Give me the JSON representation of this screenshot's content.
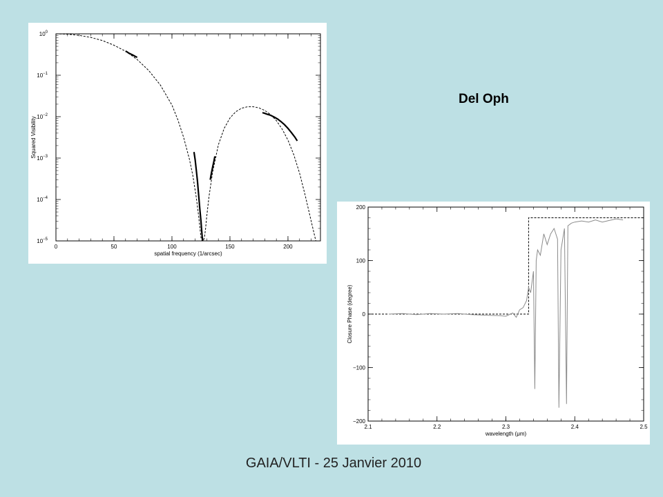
{
  "slide": {
    "title": "Del Oph",
    "footer": "GAIA/VLTI - 25 Janvier 2010"
  },
  "colors": {
    "background": "#bde0e4",
    "panel": "#ffffff",
    "data_line": "#000000",
    "model_line": "#000000",
    "data_gray": "#8a8a8a"
  },
  "chart_data": [
    {
      "type": "line",
      "xlabel": "spatial frequency (1/arcsec)",
      "ylabel": "Squared Visibility",
      "xlim": [
        0,
        228
      ],
      "ylim": [
        1e-05,
        1
      ],
      "yscale": "log",
      "xticks": [
        0,
        50,
        100,
        150,
        200
      ],
      "yticks": [
        {
          "value": 1,
          "mantissa": "10",
          "exp": "0"
        },
        {
          "value": 0.1,
          "mantissa": "10",
          "exp": "−1"
        },
        {
          "value": 0.01,
          "mantissa": "10",
          "exp": "−2"
        },
        {
          "value": 0.001,
          "mantissa": "10",
          "exp": "−3"
        },
        {
          "value": 0.0001,
          "mantissa": "10",
          "exp": "−4"
        },
        {
          "value": 1e-05,
          "mantissa": "10",
          "exp": "−5"
        }
      ],
      "grid": false,
      "series": [
        {
          "style": "dashed",
          "x": [
            0,
            10,
            20,
            30,
            40,
            50,
            60,
            70,
            80,
            90,
            100,
            105,
            110,
            115,
            118,
            121,
            123,
            125,
            126,
            127,
            128,
            129,
            130,
            132,
            135,
            140,
            145,
            150,
            155,
            160,
            165,
            170,
            175,
            180,
            185,
            190,
            195,
            200,
            205,
            210,
            215,
            220,
            224,
            226
          ],
          "y": [
            1.0,
            0.98,
            0.92,
            0.82,
            0.69,
            0.53,
            0.38,
            0.24,
            0.13,
            0.058,
            0.019,
            0.0085,
            0.0032,
            0.00095,
            0.00038,
            0.00011,
            4e-05,
            1.2e-05,
            1e-05,
            1e-05,
            1.2e-05,
            2e-05,
            4e-05,
            0.00012,
            0.00045,
            0.0021,
            0.0052,
            0.0093,
            0.0132,
            0.016,
            0.0173,
            0.0174,
            0.0163,
            0.0141,
            0.0112,
            0.008,
            0.005,
            0.0027,
            0.0012,
            0.00043,
            0.00012,
            3e-05,
            1e-05,
            3e-06
          ]
        },
        {
          "style": "solid",
          "x": [
            60,
            61,
            62,
            63,
            64,
            65,
            66,
            67,
            68,
            69,
            70
          ],
          "y": [
            0.38,
            0.37,
            0.355,
            0.34,
            0.33,
            0.32,
            0.31,
            0.3,
            0.29,
            0.28,
            0.27
          ]
        },
        {
          "style": "solid",
          "x": [
            119,
            120,
            121,
            122,
            123,
            124,
            125,
            125.5,
            126,
            126.5
          ],
          "y": [
            0.0014,
            0.0009,
            0.0005,
            0.00028,
            0.00013,
            6e-05,
            3e-05,
            2e-05,
            1.3e-05,
            1e-05
          ]
        },
        {
          "style": "solid",
          "x": [
            133,
            134,
            135,
            136,
            137
          ],
          "y": [
            0.0003,
            0.00043,
            0.0006,
            0.0008,
            0.0011
          ]
        },
        {
          "style": "solid",
          "x": [
            178,
            180,
            182,
            185,
            188,
            191,
            194,
            197,
            200,
            203,
            206,
            208
          ],
          "y": [
            0.0125,
            0.012,
            0.0115,
            0.0108,
            0.0098,
            0.0088,
            0.0076,
            0.0064,
            0.0052,
            0.0041,
            0.0032,
            0.0026
          ]
        }
      ]
    },
    {
      "type": "line",
      "xlabel": "wavelength (μm)",
      "ylabel": "Closure Phase (degree)",
      "xlim": [
        2.1,
        2.5
      ],
      "ylim": [
        -200,
        200
      ],
      "xticks": [
        2.1,
        2.2,
        2.3,
        2.4,
        2.5
      ],
      "xtick_labels": [
        "2.1",
        "2.2",
        "2.3",
        "2.4",
        "2.5"
      ],
      "yticks": [
        200,
        100,
        0,
        -100,
        -200
      ],
      "ytick_labels": [
        "200",
        "100",
        "0",
        "−100",
        "−200"
      ],
      "grid": false,
      "series": [
        {
          "style": "dashed",
          "x": [
            2.1,
            2.333,
            2.333,
            2.5
          ],
          "y": [
            0,
            0,
            180,
            180
          ]
        },
        {
          "style": "solid",
          "x": [
            2.13,
            2.15,
            2.17,
            2.19,
            2.21,
            2.23,
            2.25,
            2.27,
            2.29,
            2.3,
            2.31,
            2.315,
            2.32,
            2.325,
            2.33,
            2.333,
            2.336,
            2.34,
            2.342,
            2.344,
            2.346,
            2.35,
            2.355,
            2.36,
            2.365,
            2.37,
            2.375,
            2.377,
            2.38,
            2.385,
            2.388,
            2.39,
            2.395,
            2.4,
            2.41,
            2.42,
            2.43,
            2.44,
            2.45,
            2.46,
            2.47
          ],
          "y": [
            0,
            1,
            -1,
            1,
            0,
            1,
            -1,
            -2,
            -3,
            -4,
            2,
            -6,
            8,
            12,
            25,
            50,
            40,
            80,
            -140,
            100,
            120,
            110,
            150,
            130,
            150,
            160,
            140,
            -175,
            120,
            160,
            -168,
            165,
            170,
            172,
            174,
            172,
            176,
            172,
            175,
            178,
            176
          ]
        }
      ]
    }
  ]
}
